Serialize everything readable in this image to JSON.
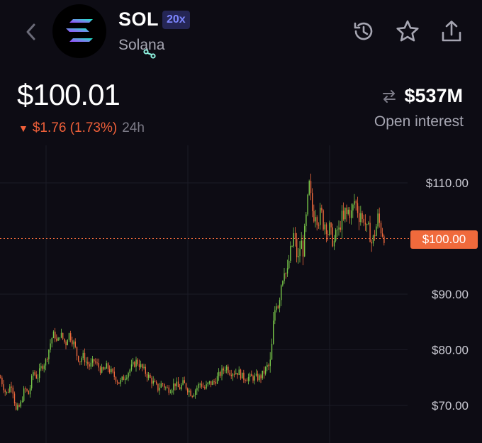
{
  "header": {
    "symbol": "SOL",
    "leverage": "20x",
    "name": "Solana",
    "icons": [
      "back-chevron-icon",
      "solana-logo",
      "link-badge-icon",
      "history-icon",
      "star-icon",
      "share-icon"
    ]
  },
  "market": {
    "price": "$100.01",
    "change": "$1.76 (1.73%)",
    "change_direction": "down",
    "period": "24h",
    "open_interest": "$537M",
    "open_interest_label": "Open interest"
  },
  "colors": {
    "background": "#0d0c14",
    "up": "#78c84a",
    "down": "#f06a3c",
    "leverage_badge_bg": "#252655",
    "leverage_badge_text": "#7d86ff"
  },
  "chart": {
    "current_price_label": "$100.00",
    "y_ticks": [
      "$110.00",
      "$100.00",
      "$90.00",
      "$80.00",
      "$70.00"
    ]
  },
  "chart_data": {
    "type": "candlestick",
    "y_ticks": [
      110,
      100,
      90,
      80,
      70
    ],
    "ylim": [
      68,
      114
    ],
    "current_price": 100,
    "close_path": [
      [
        0,
        75
      ],
      [
        8,
        72
      ],
      [
        16,
        74
      ],
      [
        22,
        69
      ],
      [
        28,
        70
      ],
      [
        34,
        73
      ],
      [
        40,
        72
      ],
      [
        46,
        76
      ],
      [
        52,
        75
      ],
      [
        58,
        77
      ],
      [
        64,
        78
      ],
      [
        68,
        80
      ],
      [
        72,
        82
      ],
      [
        76,
        83
      ],
      [
        80,
        81
      ],
      [
        84,
        83
      ],
      [
        88,
        82
      ],
      [
        92,
        81
      ],
      [
        96,
        83
      ],
      [
        100,
        82
      ],
      [
        104,
        81
      ],
      [
        108,
        79
      ],
      [
        112,
        78
      ],
      [
        116,
        79
      ],
      [
        120,
        78
      ],
      [
        126,
        77
      ],
      [
        132,
        78
      ],
      [
        138,
        77
      ],
      [
        144,
        76
      ],
      [
        150,
        77
      ],
      [
        156,
        76
      ],
      [
        162,
        75
      ],
      [
        168,
        74
      ],
      [
        174,
        75
      ],
      [
        180,
        76
      ],
      [
        186,
        77
      ],
      [
        192,
        78
      ],
      [
        198,
        77
      ],
      [
        204,
        76
      ],
      [
        210,
        75
      ],
      [
        216,
        74
      ],
      [
        222,
        73
      ],
      [
        228,
        74
      ],
      [
        234,
        73
      ],
      [
        240,
        73
      ],
      [
        246,
        74
      ],
      [
        252,
        73
      ],
      [
        258,
        74
      ],
      [
        264,
        73
      ],
      [
        270,
        72
      ],
      [
        276,
        73
      ],
      [
        282,
        74
      ],
      [
        288,
        73
      ],
      [
        294,
        74
      ],
      [
        300,
        74
      ],
      [
        306,
        75
      ],
      [
        312,
        76
      ],
      [
        318,
        77
      ],
      [
        324,
        76
      ],
      [
        330,
        76
      ],
      [
        336,
        76
      ],
      [
        342,
        75
      ],
      [
        348,
        75
      ],
      [
        354,
        75
      ],
      [
        360,
        75
      ],
      [
        366,
        75
      ],
      [
        372,
        76
      ],
      [
        376,
        77
      ],
      [
        380,
        77
      ],
      [
        382,
        79
      ],
      [
        384,
        83
      ],
      [
        386,
        86
      ],
      [
        388,
        88
      ],
      [
        390,
        89
      ],
      [
        392,
        88
      ],
      [
        394,
        90
      ],
      [
        396,
        92
      ],
      [
        398,
        93
      ],
      [
        400,
        95
      ],
      [
        402,
        94
      ],
      [
        404,
        93
      ],
      [
        406,
        95
      ],
      [
        408,
        97
      ],
      [
        410,
        98
      ],
      [
        412,
        99
      ],
      [
        414,
        101
      ],
      [
        416,
        99
      ],
      [
        418,
        97
      ],
      [
        420,
        96
      ],
      [
        422,
        98
      ],
      [
        424,
        100
      ],
      [
        426,
        97
      ],
      [
        428,
        99
      ],
      [
        430,
        103
      ],
      [
        432,
        104
      ],
      [
        434,
        108
      ],
      [
        436,
        110
      ],
      [
        438,
        107
      ],
      [
        440,
        105
      ],
      [
        442,
        104
      ],
      [
        444,
        105
      ],
      [
        446,
        104
      ],
      [
        448,
        103
      ],
      [
        450,
        104
      ],
      [
        452,
        105
      ],
      [
        454,
        104
      ],
      [
        456,
        102
      ],
      [
        458,
        103
      ],
      [
        460,
        102
      ],
      [
        462,
        101
      ],
      [
        464,
        102
      ],
      [
        466,
        101
      ],
      [
        468,
        100
      ],
      [
        470,
        99
      ],
      [
        472,
        100
      ],
      [
        474,
        101
      ],
      [
        476,
        102
      ],
      [
        478,
        101
      ],
      [
        480,
        103
      ],
      [
        482,
        104
      ],
      [
        484,
        103
      ],
      [
        486,
        105
      ],
      [
        488,
        104
      ],
      [
        490,
        105
      ],
      [
        492,
        105
      ],
      [
        494,
        104
      ],
      [
        496,
        105
      ],
      [
        498,
        106
      ],
      [
        500,
        107
      ],
      [
        502,
        106
      ],
      [
        504,
        105
      ],
      [
        506,
        104
      ],
      [
        508,
        105
      ],
      [
        510,
        103
      ],
      [
        512,
        104
      ],
      [
        514,
        103
      ],
      [
        516,
        102
      ],
      [
        518,
        101
      ],
      [
        520,
        102
      ],
      [
        522,
        100
      ],
      [
        524,
        99
      ],
      [
        526,
        100
      ],
      [
        528,
        101
      ],
      [
        530,
        102
      ],
      [
        532,
        104
      ],
      [
        534,
        103
      ],
      [
        536,
        102
      ],
      [
        538,
        101
      ],
      [
        540,
        101
      ],
      [
        542,
        100
      ]
    ]
  }
}
